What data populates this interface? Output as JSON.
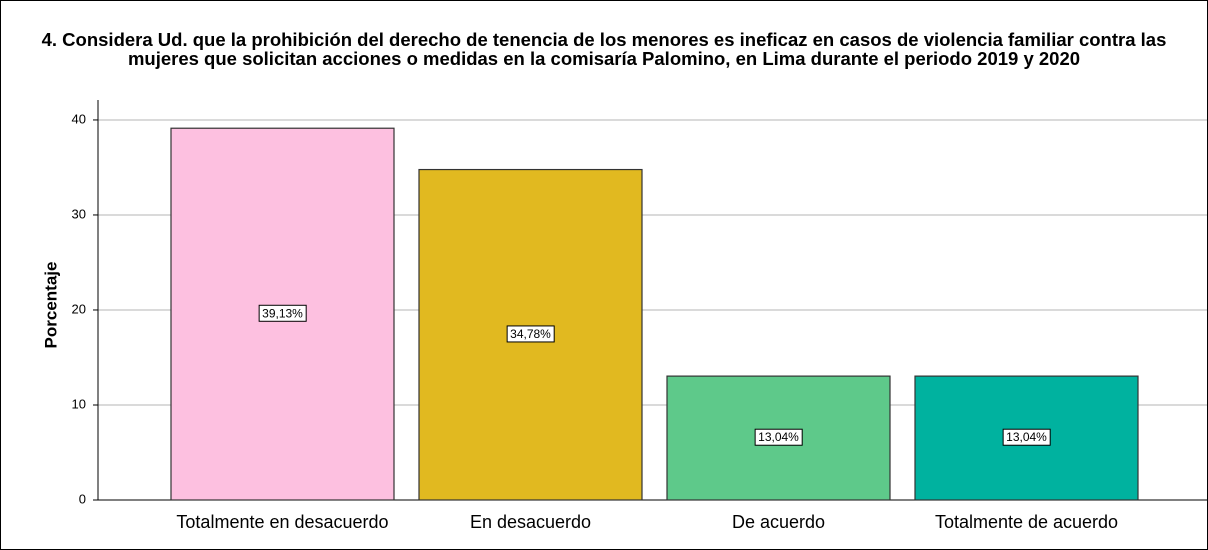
{
  "chart_data": {
    "type": "bar",
    "title": "4. Considera Ud. que la prohibición del derecho de tenencia de los menores es ineficaz en casos de violencia familiar contra las mujeres que solicitan acciones o medidas en la comisaría Palomino, en Lima durante el periodo 2019 y 2020",
    "y_label": "Porcentaje",
    "categories": [
      "Totalmente en desacuerdo",
      "En desacuerdo",
      "De acuerdo",
      "Totalmente de acuerdo"
    ],
    "values": [
      39.13,
      34.78,
      13.04,
      13.04
    ],
    "value_labels": [
      "39,13%",
      "34,78%",
      "13,04%",
      "13,04%"
    ],
    "colors": [
      "#fdc0e0",
      "#e1b920",
      "#5ec98a",
      "#00b29f"
    ],
    "ylim": [
      0,
      42.1
    ],
    "yticks": [
      0,
      10,
      20,
      30,
      40
    ],
    "grid": true
  }
}
